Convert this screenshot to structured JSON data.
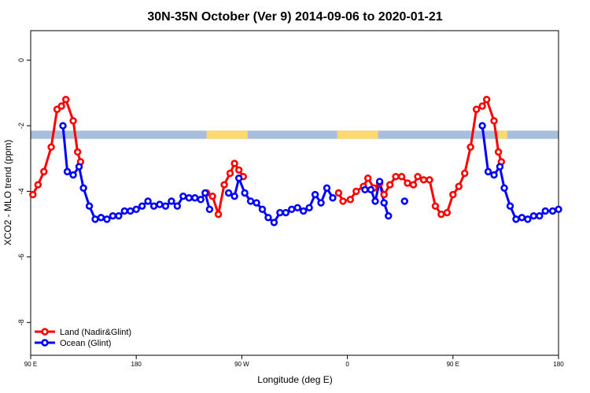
{
  "chart_data": {
    "type": "line",
    "title": "30N-35N October (Ver 9)   2014-09-06 to 2020-01-21",
    "xlabel": "Longitude (deg E)",
    "ylabel": "XCO2 - MLO trend (ppm)",
    "xlim": [
      90,
      450
    ],
    "ylim": [
      -9,
      0.9
    ],
    "x_ticks": [
      {
        "value": 90,
        "label": "90 E"
      },
      {
        "value": 162,
        "label": "180"
      },
      {
        "value": 234,
        "label": "90 W"
      },
      {
        "value": 306,
        "label": "0"
      },
      {
        "value": 378,
        "label": "90 E"
      },
      {
        "value": 450,
        "label": "180"
      }
    ],
    "y_ticks": [
      {
        "value": 0,
        "label": "0"
      },
      {
        "value": -2,
        "label": "-2"
      },
      {
        "value": -4,
        "label": "-4"
      },
      {
        "value": -6,
        "label": "-6"
      },
      {
        "value": -8,
        "label": "-8"
      }
    ],
    "land_ocean_band": {
      "y_range": [
        -2.4,
        -2.15
      ],
      "land_color": "#ffd870",
      "ocean_color": "#a8bedd",
      "land_segments": [
        [
          210,
          238
        ],
        [
          299,
          327
        ],
        [
          409,
          415
        ]
      ]
    },
    "legend_position": "bottom-left",
    "series": [
      {
        "name": "Land (Nadir&Glint)",
        "color": "#ff0000",
        "segments": [
          [
            [
              91.5,
              -4.1
            ],
            [
              95,
              -3.8
            ],
            [
              99,
              -3.4
            ],
            [
              104,
              -2.65
            ],
            [
              108,
              -1.5
            ],
            [
              111,
              -1.4
            ],
            [
              114,
              -1.2
            ],
            [
              119,
              -1.85
            ],
            [
              122,
              -2.8
            ],
            [
              124,
              -3.1
            ]
          ],
          [
            [
              210,
              -4.05
            ],
            [
              214,
              -4.15
            ],
            [
              218,
              -4.7
            ],
            [
              222,
              -3.8
            ],
            [
              226,
              -3.45
            ],
            [
              229,
              -3.15
            ],
            [
              232,
              -3.35
            ],
            [
              235,
              -3.55
            ]
          ],
          [
            [
              300,
              -4.05
            ],
            [
              303,
              -4.3
            ],
            [
              308,
              -4.25
            ],
            [
              312,
              -4.0
            ],
            [
              317,
              -3.85
            ],
            [
              320,
              -3.6
            ],
            [
              324,
              -3.9
            ],
            [
              328,
              -3.75
            ],
            [
              331,
              -4.1
            ],
            [
              335,
              -3.8
            ],
            [
              339,
              -3.55
            ],
            [
              343,
              -3.55
            ],
            [
              347,
              -3.75
            ],
            [
              351,
              -3.8
            ],
            [
              354,
              -3.55
            ],
            [
              358,
              -3.65
            ],
            [
              362,
              -3.65
            ],
            [
              366,
              -4.45
            ],
            [
              370,
              -4.7
            ],
            [
              374,
              -4.65
            ],
            [
              378,
              -4.1
            ],
            [
              382,
              -3.85
            ],
            [
              386,
              -3.45
            ],
            [
              390,
              -2.65
            ],
            [
              394,
              -1.5
            ],
            [
              398,
              -1.4
            ],
            [
              401,
              -1.2
            ],
            [
              406,
              -1.85
            ],
            [
              409,
              -2.8
            ],
            [
              411,
              -3.1
            ]
          ]
        ]
      },
      {
        "name": "Ocean (Glint)",
        "color": "#0000ff",
        "segments": [
          [
            [
              112,
              -2.0
            ],
            [
              115,
              -3.4
            ],
            [
              119,
              -3.5
            ],
            [
              123,
              -3.25
            ],
            [
              126,
              -3.9
            ],
            [
              130,
              -4.45
            ],
            [
              134,
              -4.85
            ],
            [
              138,
              -4.8
            ],
            [
              142,
              -4.85
            ],
            [
              146,
              -4.75
            ],
            [
              150,
              -4.75
            ],
            [
              154,
              -4.6
            ],
            [
              158,
              -4.6
            ],
            [
              162,
              -4.55
            ],
            [
              166,
              -4.45
            ],
            [
              170,
              -4.3
            ],
            [
              174,
              -4.45
            ],
            [
              178,
              -4.4
            ],
            [
              182,
              -4.45
            ],
            [
              186,
              -4.3
            ],
            [
              190,
              -4.45
            ],
            [
              194,
              -4.15
            ],
            [
              198,
              -4.2
            ],
            [
              202,
              -4.2
            ],
            [
              206,
              -4.25
            ],
            [
              209,
              -4.05
            ],
            [
              212,
              -4.55
            ]
          ],
          [
            [
              225,
              -4.05
            ],
            [
              229,
              -4.15
            ],
            [
              232,
              -3.6
            ],
            [
              236,
              -4.05
            ],
            [
              240,
              -4.3
            ],
            [
              244,
              -4.35
            ],
            [
              248,
              -4.55
            ],
            [
              252,
              -4.8
            ],
            [
              256,
              -4.95
            ],
            [
              260,
              -4.65
            ],
            [
              264,
              -4.65
            ],
            [
              268,
              -4.55
            ],
            [
              272,
              -4.5
            ],
            [
              276,
              -4.6
            ],
            [
              280,
              -4.5
            ],
            [
              284,
              -4.1
            ],
            [
              288,
              -4.35
            ],
            [
              292,
              -3.9
            ],
            [
              296,
              -4.2
            ]
          ],
          [
            [
              318,
              -3.95
            ],
            [
              322,
              -3.95
            ],
            [
              325,
              -4.3
            ],
            [
              328,
              -3.7
            ],
            [
              331,
              -4.35
            ],
            [
              334,
              -4.75
            ]
          ],
          [
            [
              345,
              -4.3
            ]
          ],
          [
            [
              398,
              -2.0
            ],
            [
              402,
              -3.4
            ],
            [
              406,
              -3.5
            ],
            [
              410,
              -3.25
            ],
            [
              413,
              -3.9
            ],
            [
              417,
              -4.45
            ],
            [
              421,
              -4.85
            ],
            [
              425,
              -4.8
            ],
            [
              429,
              -4.85
            ],
            [
              433,
              -4.75
            ],
            [
              437,
              -4.75
            ],
            [
              441,
              -4.6
            ],
            [
              446,
              -4.6
            ],
            [
              450,
              -4.55
            ]
          ]
        ]
      }
    ]
  }
}
